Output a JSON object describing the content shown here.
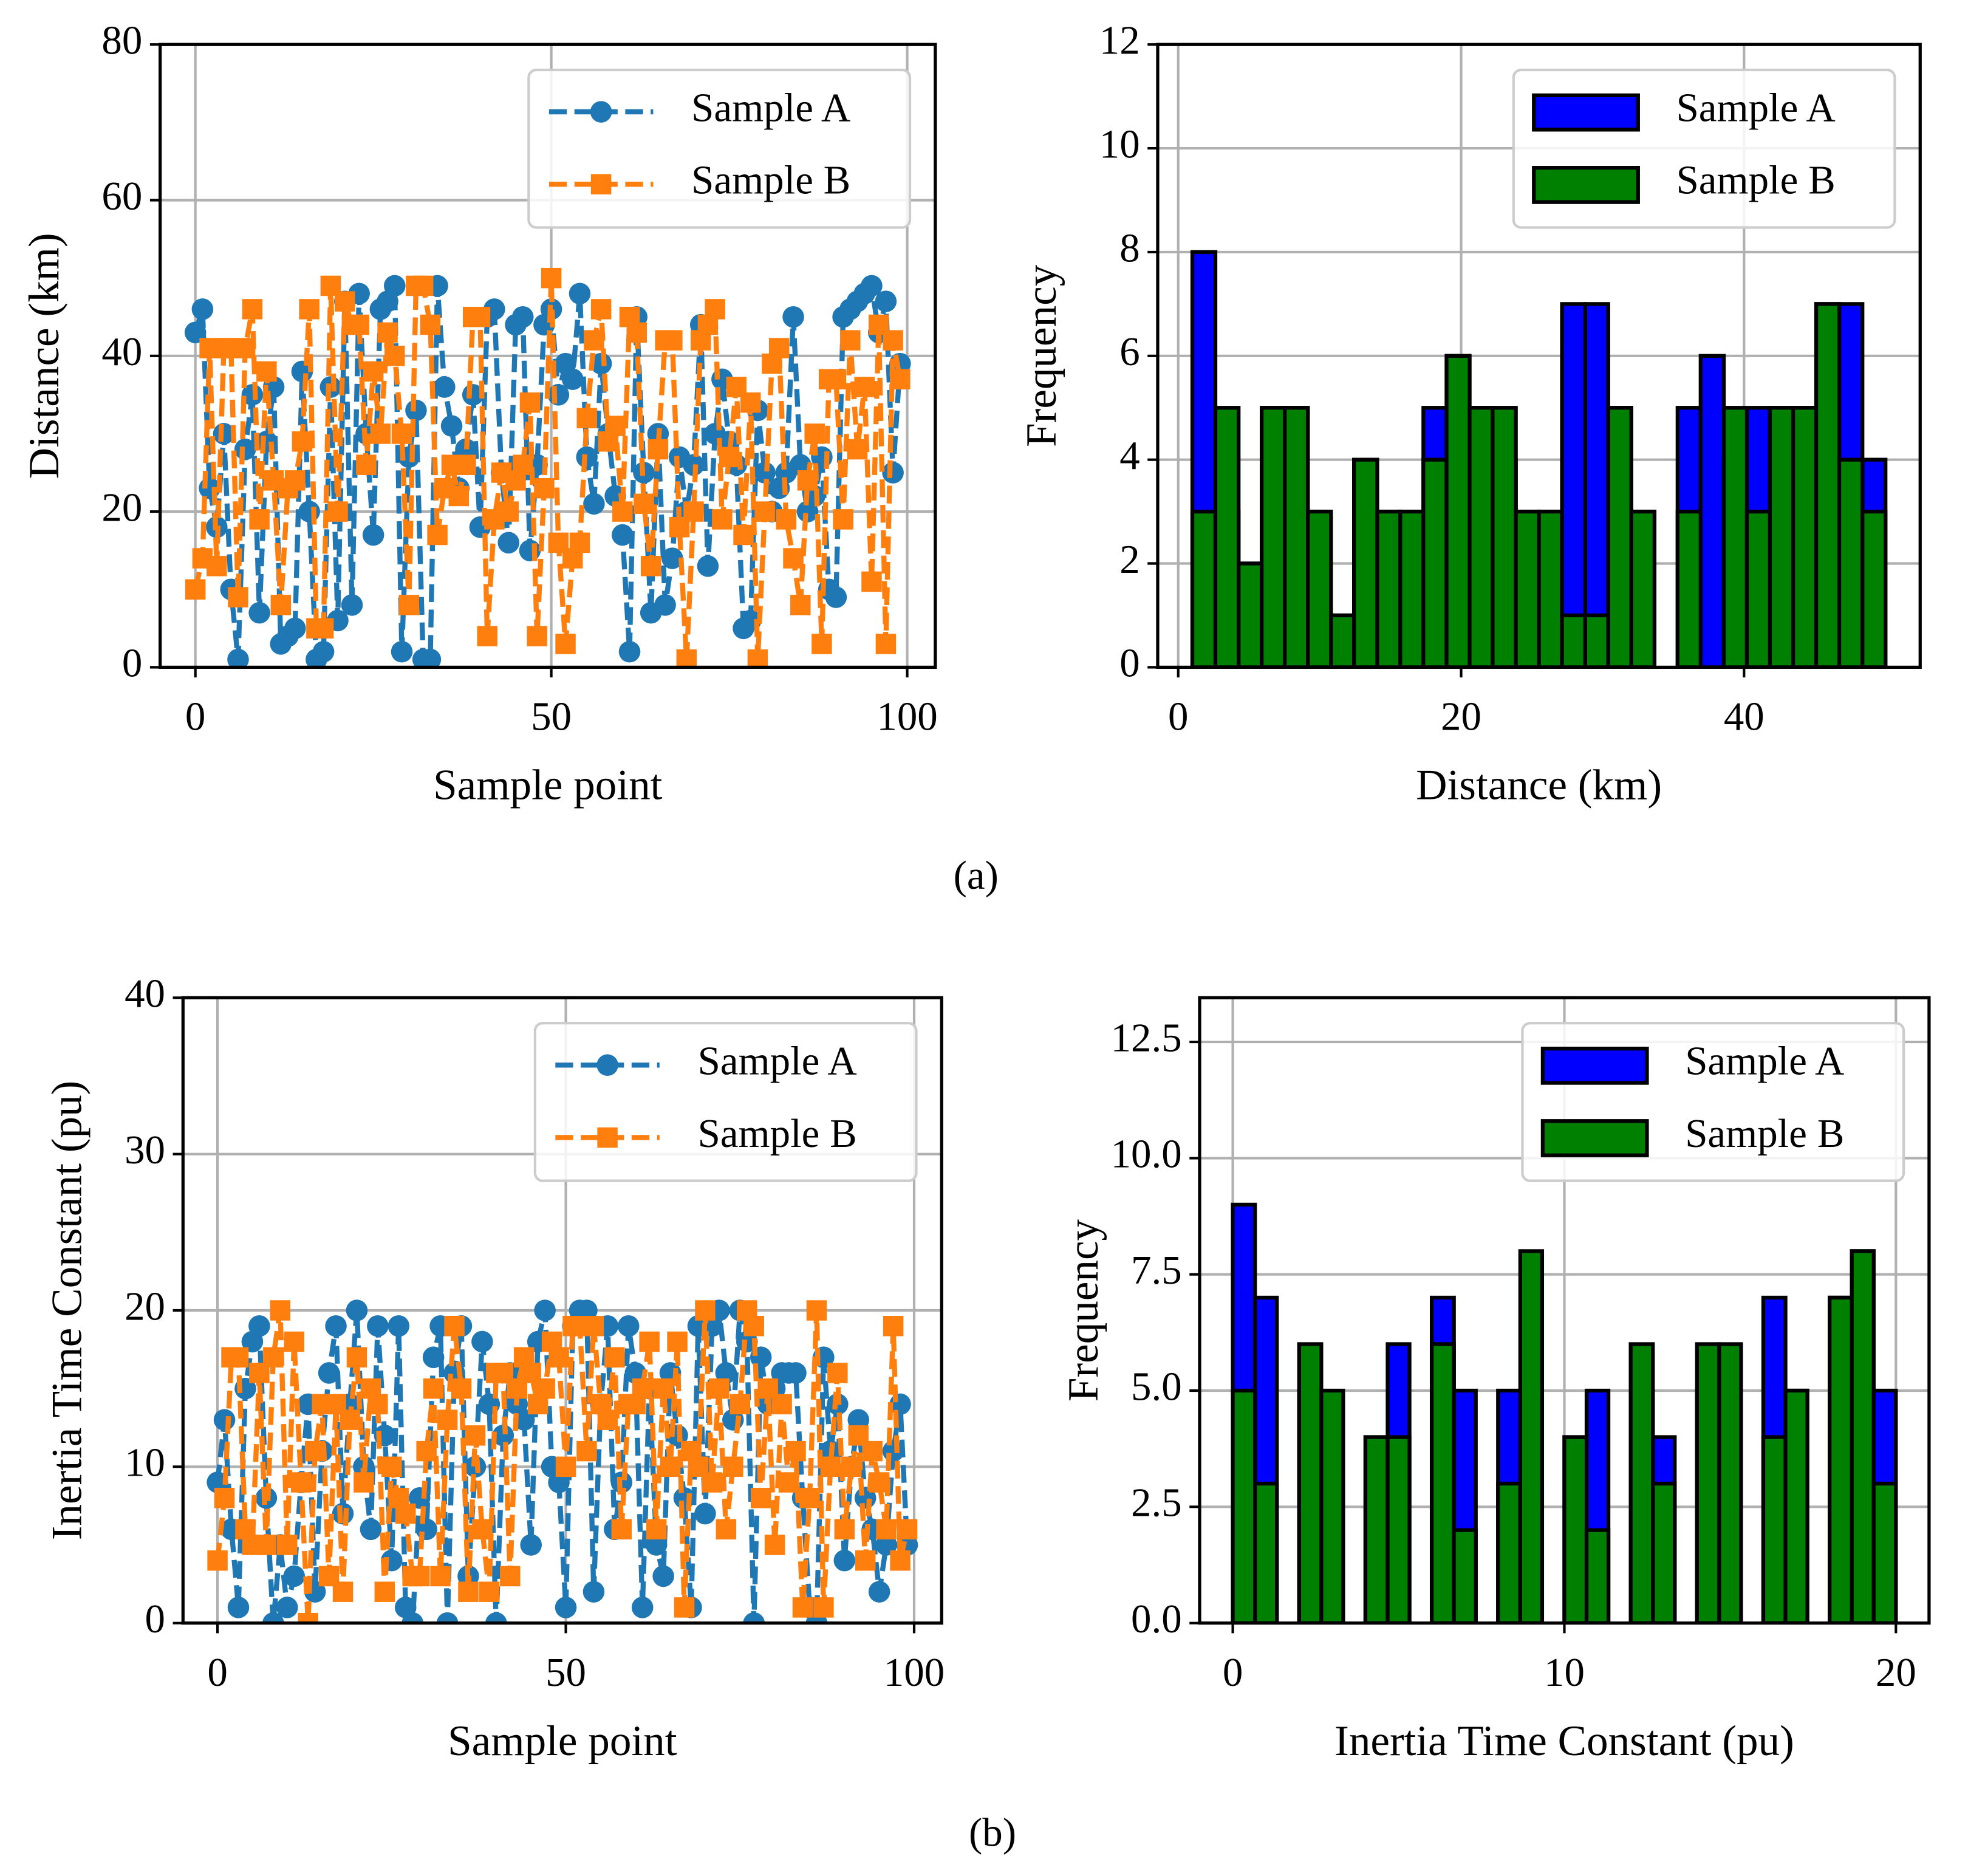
{
  "captions": [
    "(a)",
    "(b)"
  ],
  "chart_data": [
    {
      "type": "line",
      "xlabel": "Sample point",
      "ylabel": "Distance (km)",
      "xlim": [
        -4.95,
        103.95
      ],
      "ylim": [
        0,
        80
      ],
      "xticks": [
        0,
        50,
        100
      ],
      "yticks": [
        0,
        20,
        40,
        60,
        80
      ],
      "grid": true,
      "legend": "upper right",
      "x": [
        0,
        1,
        2,
        3,
        4,
        5,
        6,
        7,
        8,
        9,
        10,
        11,
        12,
        13,
        14,
        15,
        16,
        17,
        18,
        19,
        20,
        21,
        22,
        23,
        24,
        25,
        26,
        27,
        28,
        29,
        30,
        31,
        32,
        33,
        34,
        35,
        36,
        37,
        38,
        39,
        40,
        41,
        42,
        43,
        44,
        45,
        46,
        47,
        48,
        49,
        50,
        51,
        52,
        53,
        54,
        55,
        56,
        57,
        58,
        59,
        60,
        61,
        62,
        63,
        64,
        65,
        66,
        67,
        68,
        69,
        70,
        71,
        72,
        73,
        74,
        75,
        76,
        77,
        78,
        79,
        80,
        81,
        82,
        83,
        84,
        85,
        86,
        87,
        88,
        89,
        90,
        91,
        92,
        93,
        94,
        95,
        96,
        97,
        98,
        99
      ],
      "series": [
        {
          "name": "Sample A",
          "color": "#1f77b4",
          "marker": "circle",
          "values": [
            43,
            46,
            23,
            18,
            30,
            10,
            1,
            28,
            35,
            7,
            29,
            36,
            3,
            4,
            5,
            38,
            20,
            1,
            2,
            36,
            6,
            47,
            8,
            48,
            30,
            17,
            46,
            47,
            49,
            2,
            27,
            33,
            1,
            1,
            49,
            36,
            31,
            23,
            28,
            35,
            18,
            45,
            46,
            25,
            16,
            44,
            45,
            15,
            26,
            44,
            46,
            35,
            39,
            37,
            48,
            27,
            21,
            39,
            30,
            22,
            17,
            2,
            45,
            25,
            7,
            30,
            8,
            14,
            27,
            20,
            26,
            44,
            13,
            30,
            37,
            29,
            26,
            5,
            6,
            33,
            25,
            20,
            23,
            25,
            45,
            26,
            20,
            22,
            27,
            10,
            9,
            45,
            46,
            47,
            48,
            49,
            43,
            47,
            25,
            39
          ]
        },
        {
          "name": "Sample B",
          "color": "#ff7f0e",
          "marker": "square",
          "values": [
            10,
            14,
            41,
            13,
            41,
            41,
            9,
            41,
            46,
            19,
            38,
            24,
            8,
            23,
            24,
            29,
            46,
            5,
            5,
            49,
            20,
            47,
            44,
            44,
            26,
            38,
            30,
            43,
            40,
            30,
            8,
            49,
            49,
            44,
            17,
            23,
            26,
            22,
            26,
            45,
            45,
            4,
            19,
            25,
            20,
            24,
            26,
            34,
            4,
            23,
            50,
            16,
            3,
            14,
            16,
            32,
            42,
            46,
            29,
            31,
            20,
            45,
            43,
            21,
            13,
            28,
            42,
            42,
            18,
            1,
            20,
            42,
            44,
            46,
            19,
            27,
            36,
            17,
            34,
            1,
            20,
            39,
            41,
            19,
            14,
            8,
            24,
            30,
            3,
            37,
            37,
            19,
            42,
            28,
            36,
            11,
            44,
            3,
            42,
            37
          ]
        }
      ]
    },
    {
      "type": "histogram",
      "xlabel": "Distance (km)",
      "ylabel": "Frequency",
      "xlim": [
        -1.45,
        52.45
      ],
      "ylim": [
        0,
        12
      ],
      "xticks": [
        0,
        20,
        40
      ],
      "yticks": [
        0,
        2,
        4,
        6,
        8,
        10,
        12
      ],
      "grid": true,
      "legend": "upper right",
      "series": [
        {
          "name": "Sample A",
          "color": "#0000ff",
          "bins": [
            1,
            2.63,
            4.27,
            5.9,
            7.53,
            9.17,
            10.8,
            12.43,
            14.07,
            15.7,
            17.33,
            18.97,
            20.6,
            22.23,
            23.87,
            25.5,
            27.13,
            28.77,
            30.4,
            32.03,
            33.67,
            35.3,
            36.93,
            38.57,
            40.2,
            41.83,
            43.47,
            45.1,
            46.73,
            48.37,
            50
          ],
          "values": [
            8,
            3,
            2,
            5,
            5,
            3,
            1,
            4,
            3,
            3,
            5,
            6,
            5,
            4,
            3,
            3,
            7,
            7,
            5,
            3,
            0,
            5,
            6,
            4,
            5,
            5,
            5,
            7,
            7,
            4
          ]
        },
        {
          "name": "Sample B",
          "color": "#008000",
          "bins": [
            1,
            2.63,
            4.27,
            5.9,
            7.53,
            9.17,
            10.8,
            12.43,
            14.07,
            15.7,
            17.33,
            18.97,
            20.6,
            22.23,
            23.87,
            25.5,
            27.13,
            28.77,
            30.4,
            32.03,
            33.67,
            35.3,
            36.93,
            38.57,
            40.2,
            41.83,
            43.47,
            45.1,
            46.73,
            48.37,
            50
          ],
          "values": [
            3,
            5,
            2,
            5,
            5,
            3,
            1,
            4,
            3,
            3,
            4,
            6,
            5,
            5,
            3,
            3,
            1,
            1,
            5,
            3,
            0,
            3,
            0,
            5,
            3,
            5,
            5,
            7,
            4,
            3
          ]
        }
      ]
    },
    {
      "type": "line",
      "xlabel": "Sample point",
      "ylabel": "Inertia Time Constant (pu)",
      "xlim": [
        -4.95,
        103.95
      ],
      "ylim": [
        0,
        40
      ],
      "xticks": [
        0,
        50,
        100
      ],
      "yticks": [
        0,
        10,
        20,
        30,
        40
      ],
      "grid": true,
      "legend": "upper right",
      "x": [
        0,
        1,
        2,
        3,
        4,
        5,
        6,
        7,
        8,
        9,
        10,
        11,
        12,
        13,
        14,
        15,
        16,
        17,
        18,
        19,
        20,
        21,
        22,
        23,
        24,
        25,
        26,
        27,
        28,
        29,
        30,
        31,
        32,
        33,
        34,
        35,
        36,
        37,
        38,
        39,
        40,
        41,
        42,
        43,
        44,
        45,
        46,
        47,
        48,
        49,
        50,
        51,
        52,
        53,
        54,
        55,
        56,
        57,
        58,
        59,
        60,
        61,
        62,
        63,
        64,
        65,
        66,
        67,
        68,
        69,
        70,
        71,
        72,
        73,
        74,
        75,
        76,
        77,
        78,
        79,
        80,
        81,
        82,
        83,
        84,
        85,
        86,
        87,
        88,
        89,
        90,
        91,
        92,
        93,
        94,
        95,
        96,
        97,
        98,
        99
      ],
      "series": [
        {
          "name": "Sample A",
          "color": "#1f77b4",
          "marker": "circle",
          "values": [
            9,
            13,
            6,
            1,
            15,
            18,
            19,
            8,
            0,
            5,
            1,
            3,
            9,
            14,
            2,
            11,
            16,
            19,
            7,
            14,
            20,
            10,
            6,
            19,
            12,
            4,
            19,
            1,
            0,
            8,
            6,
            17,
            19,
            0,
            16,
            19,
            3,
            10,
            18,
            14,
            0,
            12,
            16,
            14,
            13,
            5,
            18,
            20,
            10,
            9,
            1,
            19,
            20,
            20,
            2,
            14,
            19,
            6,
            9,
            19,
            16,
            1,
            15,
            5,
            3,
            16,
            12,
            8,
            1,
            19,
            7,
            19,
            20,
            16,
            13,
            20,
            18,
            0,
            17,
            14,
            15,
            16,
            16,
            16,
            8,
            1,
            0,
            17,
            11,
            14,
            4,
            10,
            13,
            8,
            6,
            2,
            5,
            11,
            14,
            5
          ]
        },
        {
          "name": "Sample B",
          "color": "#ff7f0e",
          "marker": "square",
          "values": [
            4,
            8,
            17,
            17,
            6,
            5,
            16,
            5,
            17,
            20,
            5,
            18,
            9,
            0,
            11,
            14,
            3,
            14,
            2,
            13,
            17,
            9,
            15,
            14,
            2,
            10,
            8,
            7,
            3,
            3,
            11,
            15,
            3,
            13,
            19,
            15,
            2,
            12,
            6,
            2,
            16,
            16,
            3,
            15,
            17,
            16,
            14,
            15,
            18,
            17,
            10,
            19,
            19,
            11,
            19,
            14,
            13,
            17,
            6,
            14,
            14,
            15,
            18,
            6,
            15,
            10,
            18,
            1,
            11,
            10,
            20,
            9,
            15,
            6,
            10,
            14,
            20,
            19,
            8,
            15,
            5,
            14,
            9,
            11,
            1,
            8,
            20,
            1,
            10,
            16,
            6,
            10,
            12,
            4,
            11,
            9,
            6,
            19,
            4,
            6
          ]
        }
      ]
    },
    {
      "type": "histogram",
      "xlabel": "Inertia Time Constant (pu)",
      "ylabel": "Frequency",
      "xlim": [
        -1,
        21
      ],
      "ylim": [
        0,
        13.45
      ],
      "xticks": [
        0,
        10,
        20
      ],
      "yticks": [
        {
          "value": 0,
          "label": "0.0"
        },
        2.5,
        {
          "value": 5,
          "label": "5.0"
        },
        7.5,
        {
          "value": 10,
          "label": "10.0"
        },
        12.5
      ],
      "grid": true,
      "legend": "upper right",
      "series": [
        {
          "name": "Sample A",
          "color": "#0000ff",
          "bins": [
            0,
            0.67,
            1.33,
            2,
            2.67,
            3.33,
            4,
            4.67,
            5.33,
            6,
            6.67,
            7.33,
            8,
            8.67,
            9.33,
            10,
            10.67,
            11.33,
            12,
            12.67,
            13.33,
            14,
            14.67,
            15.33,
            16,
            16.67,
            17.33,
            18,
            18.67,
            19.33,
            20
          ],
          "values": [
            9,
            7,
            0,
            5,
            3,
            0,
            4,
            6,
            0,
            7,
            5,
            0,
            5,
            3,
            0,
            4,
            5,
            0,
            5,
            4,
            0,
            5,
            5,
            0,
            7,
            5,
            0,
            7,
            8,
            5
          ]
        },
        {
          "name": "Sample B",
          "color": "#008000",
          "bins": [
            0,
            0.67,
            1.33,
            2,
            2.67,
            3.33,
            4,
            4.67,
            5.33,
            6,
            6.67,
            7.33,
            8,
            8.67,
            9.33,
            10,
            10.67,
            11.33,
            12,
            12.67,
            13.33,
            14,
            14.67,
            15.33,
            16,
            16.67,
            17.33,
            18,
            18.67,
            19.33,
            20
          ],
          "values": [
            5,
            3,
            0,
            6,
            5,
            0,
            4,
            4,
            0,
            6,
            2,
            0,
            3,
            8,
            0,
            4,
            2,
            0,
            6,
            3,
            0,
            6,
            6,
            0,
            4,
            5,
            0,
            7,
            8,
            3
          ]
        }
      ]
    }
  ]
}
